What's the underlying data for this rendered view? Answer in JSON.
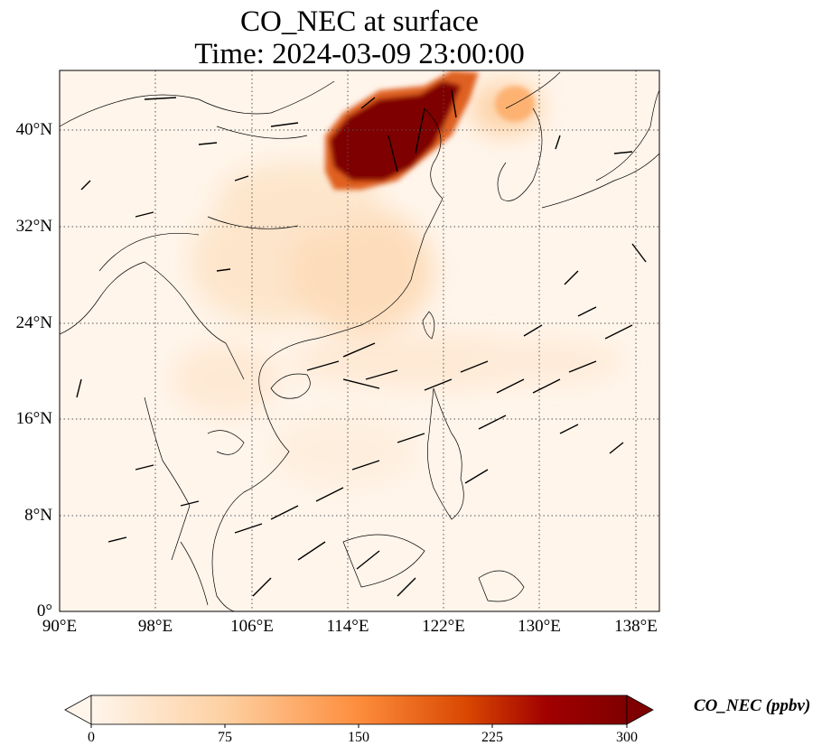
{
  "map": {
    "title_line1": "CO_NEC at surface",
    "title_line2": "Time: 2024-03-09 23:00:00",
    "lat_labels": [
      "40°N",
      "32°N",
      "24°N",
      "16°N",
      "8°N",
      "0°"
    ],
    "lon_labels": [
      "90°E",
      "98°E",
      "106°E",
      "114°E",
      "122°E",
      "130°E",
      "138°E"
    ],
    "extent": {
      "lon_min": 90,
      "lon_max": 140,
      "lat_min": 0,
      "lat_max": 45
    },
    "gridlines": "dotted"
  },
  "colorbar": {
    "label": "CO_NEC (ppbv)",
    "ticks": [
      "0",
      "75",
      "150",
      "225",
      "300"
    ],
    "colors": [
      "#fff5eb",
      "#fdd0a2",
      "#fd8d3c",
      "#d94801",
      "#a10000",
      "#7f0000"
    ],
    "extend": "both"
  }
}
